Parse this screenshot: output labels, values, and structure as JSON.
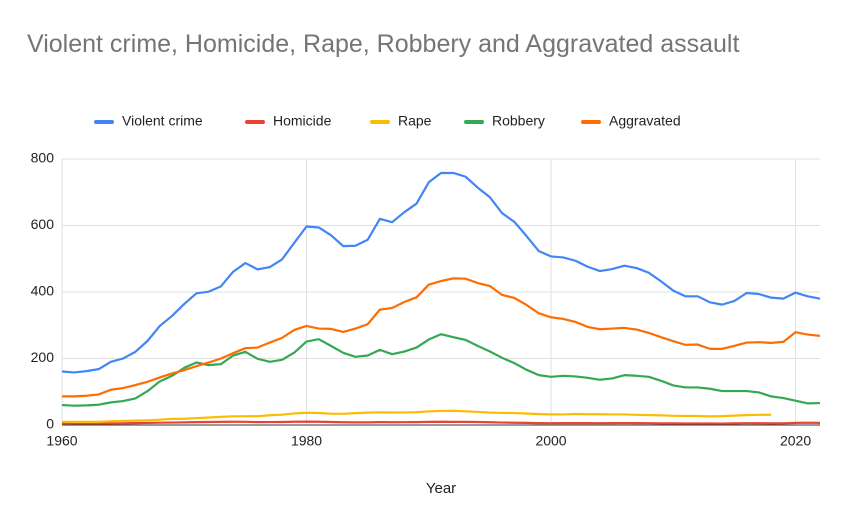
{
  "chart_data": {
    "type": "line",
    "title": "Violent crime, Homicide, Rape, Robbery and Aggravated assault",
    "x_label": "Year",
    "x": [
      1960,
      1961,
      1962,
      1963,
      1964,
      1965,
      1966,
      1967,
      1968,
      1969,
      1970,
      1971,
      1972,
      1973,
      1974,
      1975,
      1976,
      1977,
      1978,
      1979,
      1980,
      1981,
      1982,
      1983,
      1984,
      1985,
      1986,
      1987,
      1988,
      1989,
      1990,
      1991,
      1992,
      1993,
      1994,
      1995,
      1996,
      1997,
      1998,
      1999,
      2000,
      2001,
      2002,
      2003,
      2004,
      2005,
      2006,
      2007,
      2008,
      2009,
      2010,
      2011,
      2012,
      2013,
      2014,
      2015,
      2016,
      2017,
      2018,
      2019,
      2020,
      2021,
      2022
    ],
    "xlim": [
      1960,
      2022
    ],
    "xticks": [
      1960,
      1980,
      2000,
      2020
    ],
    "ylim": [
      0,
      800
    ],
    "yticks": [
      0,
      200,
      400,
      600,
      800
    ],
    "grid": true,
    "legend": "top",
    "series": [
      {
        "name": "Violent crime",
        "color": "#4285f4",
        "values": [
          161,
          158,
          162,
          168,
          190,
          200,
          220,
          253,
          298,
          328,
          364,
          396,
          401,
          417,
          461,
          487,
          468,
          475,
          498,
          548,
          597,
          594,
          571,
          538,
          539,
          557,
          620,
          610,
          640,
          666,
          730,
          758,
          758,
          747,
          714,
          685,
          637,
          611,
          568,
          523,
          507,
          504,
          494,
          476,
          463,
          469,
          479,
          472,
          458,
          432,
          404,
          387,
          387,
          369,
          362,
          373,
          397,
          394,
          383,
          380,
          398,
          387,
          380
        ]
      },
      {
        "name": "Homicide",
        "color": "#ea4335",
        "values": [
          5.1,
          4.8,
          4.6,
          4.6,
          4.9,
          5.1,
          5.6,
          6.2,
          6.9,
          7.3,
          7.9,
          8.6,
          9.0,
          9.4,
          9.8,
          9.6,
          8.7,
          8.8,
          9.0,
          9.7,
          10.2,
          9.8,
          9.1,
          8.3,
          7.9,
          7.9,
          8.6,
          8.3,
          8.4,
          8.7,
          9.4,
          9.8,
          9.3,
          9.5,
          9.0,
          8.2,
          7.4,
          6.8,
          6.3,
          5.7,
          5.5,
          5.6,
          5.6,
          5.7,
          5.5,
          5.6,
          5.8,
          5.7,
          5.4,
          5.0,
          4.8,
          4.7,
          4.7,
          4.5,
          4.4,
          4.9,
          5.4,
          5.3,
          5.0,
          5.1,
          6.5,
          6.9,
          6.3
        ]
      },
      {
        "name": "Rape",
        "color": "#fbbc04",
        "values": [
          9.6,
          9.4,
          9.4,
          9.4,
          11.2,
          12.1,
          13.2,
          14.0,
          15.9,
          18.5,
          18.7,
          20.5,
          22.5,
          24.5,
          26.2,
          26.3,
          26.6,
          29.4,
          31.0,
          34.7,
          36.8,
          36.0,
          34.0,
          33.7,
          35.7,
          37.1,
          38.1,
          37.6,
          37.8,
          38.3,
          41.1,
          42.3,
          42.8,
          41.1,
          39.3,
          37.1,
          36.3,
          35.9,
          34.5,
          32.8,
          32.0,
          31.8,
          33.1,
          32.3,
          32.4,
          31.8,
          31.7,
          30.6,
          29.8,
          29.1,
          27.7,
          27.0,
          27.1,
          25.9,
          26.6,
          28.1,
          29.7,
          30.7,
          30.9,
          null,
          null,
          null,
          null
        ]
      },
      {
        "name": "Robbery",
        "color": "#34a853",
        "values": [
          60,
          58,
          59,
          61,
          68,
          72,
          80,
          102,
          131,
          148,
          172,
          188,
          180,
          183,
          209,
          220,
          199,
          190,
          196,
          218,
          251,
          258,
          238,
          217,
          205,
          209,
          226,
          213,
          221,
          233,
          257,
          273,
          264,
          256,
          238,
          221,
          202,
          186,
          166,
          150,
          145,
          148,
          146,
          142,
          136,
          140,
          150,
          148,
          145,
          133,
          119,
          113,
          113,
          109,
          102,
          102,
          102,
          98,
          86,
          81,
          73,
          65,
          66
        ]
      },
      {
        "name": "Aggravated",
        "color": "#ff6d01",
        "values": [
          86,
          86,
          88,
          92,
          106,
          111,
          120,
          130,
          143,
          155,
          165,
          177,
          188,
          200,
          216,
          231,
          233,
          248,
          262,
          286,
          298,
          290,
          289,
          280,
          290,
          303,
          347,
          352,
          370,
          384,
          422,
          433,
          441,
          440,
          427,
          418,
          391,
          382,
          361,
          336,
          324,
          319,
          310,
          295,
          288,
          290,
          292,
          287,
          277,
          264,
          252,
          241,
          242,
          229,
          229,
          238,
          248,
          249,
          247,
          250,
          279,
          272,
          268
        ]
      }
    ]
  }
}
